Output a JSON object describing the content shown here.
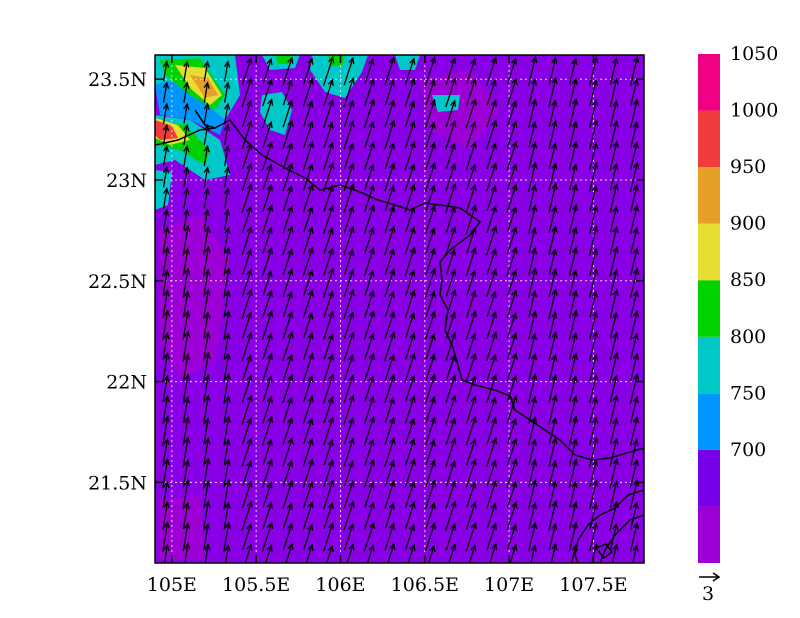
{
  "map": {
    "x_ticks": [
      {
        "lon": 105.0,
        "label": "105E"
      },
      {
        "lon": 105.5,
        "label": "105.5E"
      },
      {
        "lon": 106.0,
        "label": "106E"
      },
      {
        "lon": 106.5,
        "label": "106.5E"
      },
      {
        "lon": 107.0,
        "label": "107E"
      },
      {
        "lon": 107.5,
        "label": "107.5E"
      }
    ],
    "y_ticks": [
      {
        "lat": 23.5,
        "label": "23.5N"
      },
      {
        "lat": 23.0,
        "label": "23N"
      },
      {
        "lat": 22.5,
        "label": "22.5N"
      },
      {
        "lat": 22.0,
        "label": "22N"
      },
      {
        "lat": 21.5,
        "label": "21.5N"
      }
    ],
    "lon_range": [
      104.9,
      107.8
    ],
    "lat_range": [
      21.1,
      23.62
    ],
    "grid": true,
    "background_color": "#8a00e6",
    "wind_vectors": {
      "direction": "north-north-west",
      "reference_label": "3"
    }
  },
  "colorbar": {
    "levels": [
      {
        "color": "#9d00d6",
        "label": ""
      },
      {
        "color": "#7800e8",
        "label": "700"
      },
      {
        "color": "#0096ff",
        "label": "750"
      },
      {
        "color": "#00c8c8",
        "label": "800"
      },
      {
        "color": "#00d200",
        "label": "850"
      },
      {
        "color": "#e6dc32",
        "label": "900"
      },
      {
        "color": "#e6a028",
        "label": "950"
      },
      {
        "color": "#f03c3c",
        "label": "1000"
      },
      {
        "color": "#f00082",
        "label": "1050"
      }
    ]
  }
}
